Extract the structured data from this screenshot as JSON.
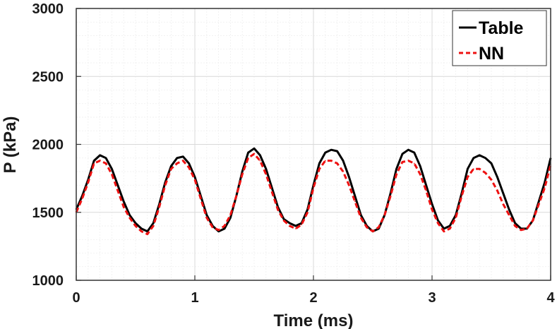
{
  "chart_data": {
    "type": "line",
    "xlabel": "Time (ms)",
    "ylabel": "P (kPa)",
    "xlim": [
      0,
      4
    ],
    "ylim": [
      1000,
      3000
    ],
    "xticks": [
      0,
      1,
      2,
      3,
      4
    ],
    "yticks": [
      1000,
      1500,
      2000,
      2500,
      3000
    ],
    "xtick_labels": [
      "0",
      "1",
      "2",
      "3",
      "4"
    ],
    "ytick_labels": [
      "1000",
      "1500",
      "2000",
      "2500",
      "3000"
    ],
    "grid": "on (major and minor)",
    "legend_position": "top-right",
    "series": [
      {
        "name": "Table",
        "color": "#000000",
        "line_style": "solid",
        "x": [
          0.0,
          0.05,
          0.1,
          0.15,
          0.2,
          0.25,
          0.3,
          0.35,
          0.4,
          0.45,
          0.5,
          0.55,
          0.6,
          0.65,
          0.7,
          0.75,
          0.8,
          0.85,
          0.9,
          0.95,
          1.0,
          1.05,
          1.1,
          1.15,
          1.2,
          1.25,
          1.3,
          1.35,
          1.4,
          1.45,
          1.5,
          1.55,
          1.6,
          1.65,
          1.7,
          1.75,
          1.8,
          1.85,
          1.9,
          1.95,
          2.0,
          2.05,
          2.1,
          2.15,
          2.2,
          2.25,
          2.3,
          2.35,
          2.4,
          2.45,
          2.5,
          2.55,
          2.6,
          2.65,
          2.7,
          2.75,
          2.8,
          2.85,
          2.9,
          2.95,
          3.0,
          3.05,
          3.1,
          3.15,
          3.2,
          3.25,
          3.3,
          3.35,
          3.4,
          3.45,
          3.5,
          3.55,
          3.6,
          3.65,
          3.7,
          3.75,
          3.8,
          3.85,
          3.9,
          3.95,
          4.0
        ],
        "y": [
          1520,
          1620,
          1740,
          1880,
          1920,
          1900,
          1820,
          1700,
          1580,
          1480,
          1420,
          1380,
          1360,
          1420,
          1560,
          1720,
          1840,
          1900,
          1910,
          1860,
          1760,
          1620,
          1480,
          1400,
          1360,
          1380,
          1460,
          1620,
          1800,
          1940,
          1970,
          1920,
          1820,
          1680,
          1540,
          1450,
          1420,
          1400,
          1420,
          1520,
          1700,
          1860,
          1940,
          1960,
          1950,
          1880,
          1760,
          1620,
          1480,
          1400,
          1360,
          1380,
          1480,
          1640,
          1820,
          1930,
          1960,
          1940,
          1840,
          1700,
          1560,
          1440,
          1380,
          1400,
          1480,
          1640,
          1820,
          1900,
          1920,
          1900,
          1860,
          1760,
          1640,
          1520,
          1420,
          1380,
          1380,
          1440,
          1580,
          1720,
          1900
        ]
      },
      {
        "name": "NN",
        "color": "#ee1111",
        "line_style": "dashed",
        "x": [
          0.0,
          0.05,
          0.1,
          0.15,
          0.2,
          0.25,
          0.3,
          0.35,
          0.4,
          0.45,
          0.5,
          0.55,
          0.6,
          0.65,
          0.7,
          0.75,
          0.8,
          0.85,
          0.9,
          0.95,
          1.0,
          1.05,
          1.1,
          1.15,
          1.2,
          1.25,
          1.3,
          1.35,
          1.4,
          1.45,
          1.5,
          1.55,
          1.6,
          1.65,
          1.7,
          1.75,
          1.8,
          1.85,
          1.9,
          1.95,
          2.0,
          2.05,
          2.1,
          2.15,
          2.2,
          2.25,
          2.3,
          2.35,
          2.4,
          2.45,
          2.5,
          2.55,
          2.6,
          2.65,
          2.7,
          2.75,
          2.8,
          2.85,
          2.9,
          2.95,
          3.0,
          3.05,
          3.1,
          3.15,
          3.2,
          3.25,
          3.3,
          3.35,
          3.4,
          3.45,
          3.5,
          3.55,
          3.6,
          3.65,
          3.7,
          3.75,
          3.8,
          3.85,
          3.9,
          3.95,
          4.0
        ],
        "y": [
          1500,
          1600,
          1720,
          1860,
          1880,
          1860,
          1780,
          1660,
          1540,
          1460,
          1400,
          1360,
          1340,
          1400,
          1540,
          1700,
          1820,
          1860,
          1880,
          1830,
          1740,
          1600,
          1460,
          1390,
          1370,
          1400,
          1480,
          1620,
          1780,
          1900,
          1930,
          1880,
          1780,
          1650,
          1520,
          1440,
          1400,
          1380,
          1410,
          1500,
          1680,
          1820,
          1880,
          1880,
          1860,
          1800,
          1700,
          1580,
          1460,
          1390,
          1360,
          1390,
          1480,
          1620,
          1780,
          1870,
          1880,
          1860,
          1780,
          1660,
          1520,
          1420,
          1360,
          1380,
          1460,
          1620,
          1760,
          1820,
          1820,
          1790,
          1740,
          1660,
          1560,
          1480,
          1400,
          1370,
          1380,
          1440,
          1560,
          1680,
          1850
        ]
      }
    ]
  },
  "colors": {
    "grid_major": "#d9d9d9",
    "grid_minor": "#eeeeee",
    "axis": "#333333"
  }
}
